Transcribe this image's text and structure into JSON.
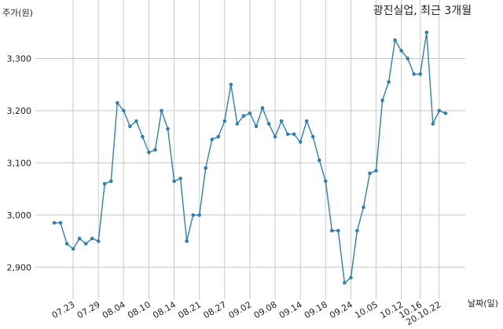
{
  "chart_data": {
    "type": "line",
    "title": "광진실업, 최근 3개월",
    "ylabel": "주가(원)",
    "xlabel": "날짜(일)",
    "ylim": [
      2820,
      3420
    ],
    "yticks": [
      2900,
      3000,
      3100,
      3200,
      3300
    ],
    "ytick_labels": [
      "2,900",
      "3,000",
      "3,100",
      "3,200",
      "3,300"
    ],
    "xtick_labels": [
      {
        "index": 3,
        "label": "07.23"
      },
      {
        "index": 7,
        "label": "07.29"
      },
      {
        "index": 11,
        "label": "08.04"
      },
      {
        "index": 15,
        "label": "08.10"
      },
      {
        "index": 19,
        "label": "08.14"
      },
      {
        "index": 23,
        "label": "08.21"
      },
      {
        "index": 27,
        "label": "08.27"
      },
      {
        "index": 31,
        "label": "09.02"
      },
      {
        "index": 35,
        "label": "09.08"
      },
      {
        "index": 39,
        "label": "09.14"
      },
      {
        "index": 43,
        "label": "09.18"
      },
      {
        "index": 47,
        "label": "09.24"
      },
      {
        "index": 51,
        "label": "10.05"
      },
      {
        "index": 55,
        "label": "10.12"
      },
      {
        "index": 58,
        "label": "10.16"
      },
      {
        "index": 61,
        "label": "20.10.22"
      }
    ],
    "grid": true,
    "color": "#2f7fb3",
    "values": [
      2985,
      2985,
      2945,
      2935,
      2955,
      2945,
      2955,
      2950,
      3060,
      3065,
      3215,
      3200,
      3170,
      3180,
      3150,
      3120,
      3125,
      3200,
      3165,
      3065,
      3070,
      2950,
      3000,
      3000,
      3090,
      3145,
      3150,
      3180,
      3250,
      3175,
      3190,
      3195,
      3170,
      3205,
      3175,
      3150,
      3180,
      3155,
      3155,
      3140,
      3180,
      3150,
      3105,
      3065,
      2970,
      2970,
      2870,
      2880,
      2970,
      3015,
      3080,
      3085,
      3220,
      3255,
      3335,
      3315,
      3300,
      3270,
      3270,
      3350,
      3175,
      3200,
      3195
    ]
  }
}
